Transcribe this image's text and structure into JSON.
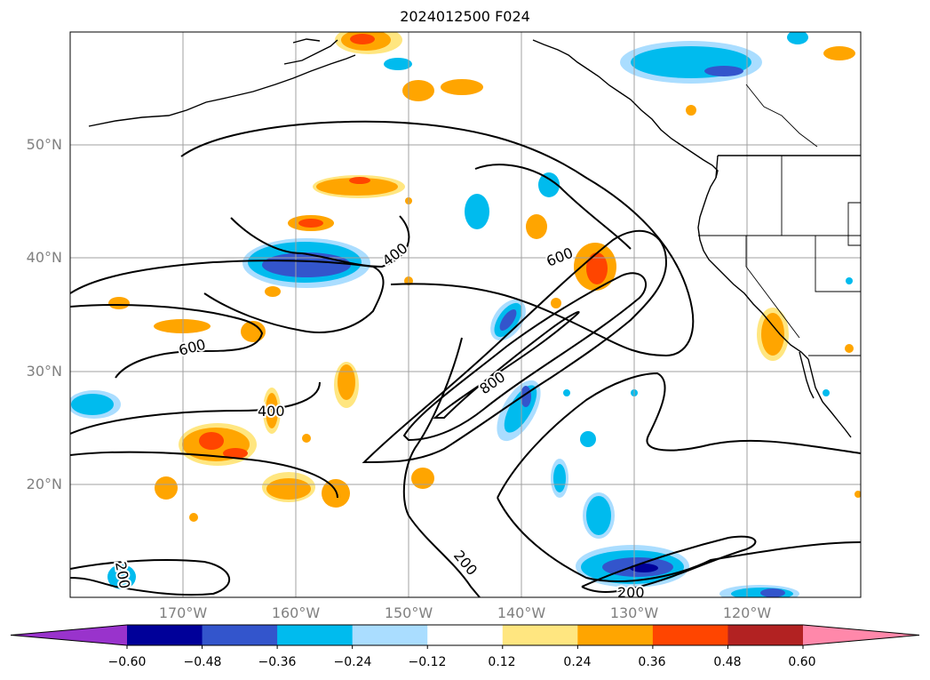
{
  "title": "2024012500 F024",
  "lat_labels": [
    "50°N",
    "40°N",
    "30°N",
    "20°N"
  ],
  "lon_labels": [
    "170°W",
    "160°W",
    "150°W",
    "140°W",
    "130°W",
    "120°W"
  ],
  "contour_labels": [
    "400",
    "600",
    "600",
    "800",
    "400",
    "200",
    "200",
    "200"
  ],
  "colorbar": {
    "ticks": [
      "−0.60",
      "−0.48",
      "−0.36",
      "−0.24",
      "−0.12",
      "0.12",
      "0.24",
      "0.36",
      "0.48",
      "0.60"
    ],
    "colors": [
      "#9933cc",
      "#000099",
      "#3355cc",
      "#00bbee",
      "#aaddff",
      "#ffffff",
      "#ffe680",
      "#ffa500",
      "#ff4500",
      "#b22222",
      "#ff88aa"
    ]
  },
  "colors": {
    "blue_light": "#aaddff",
    "blue": "#00bbee",
    "blue_mid": "#3355cc",
    "navy": "#000099",
    "yellow": "#ffe680",
    "orange": "#ffa500",
    "red_orange": "#ff4500"
  }
}
